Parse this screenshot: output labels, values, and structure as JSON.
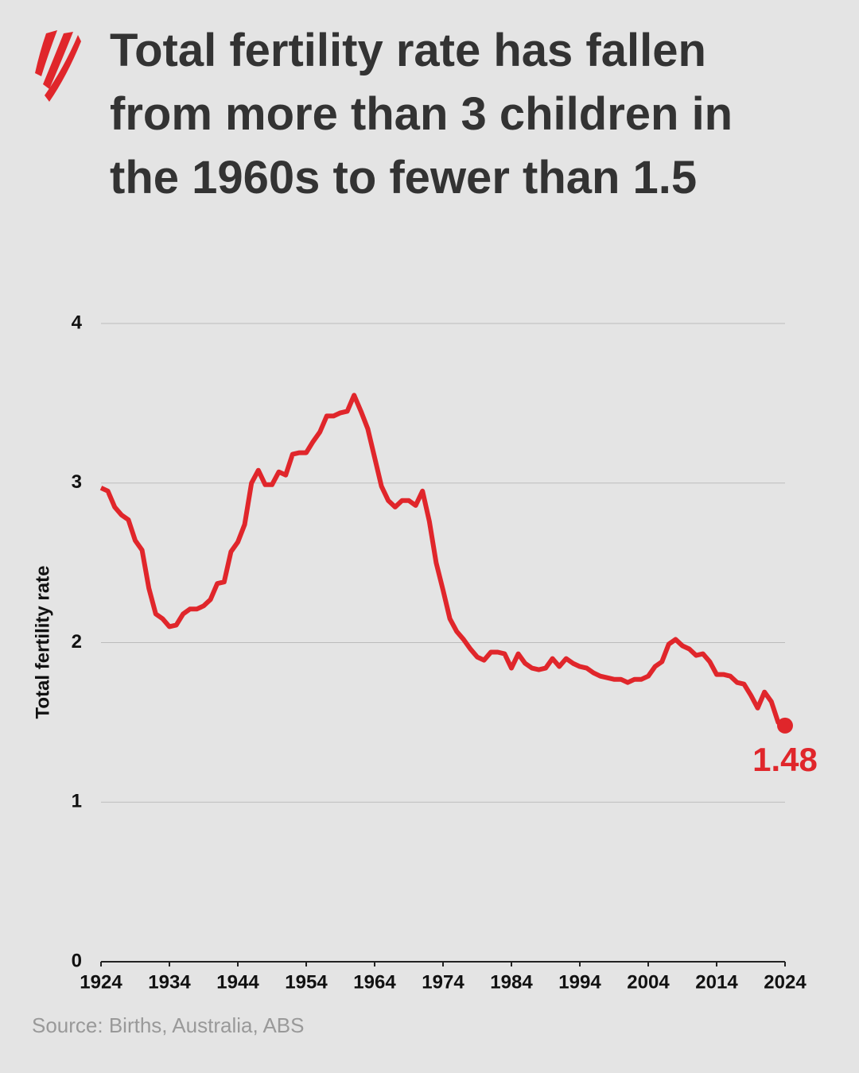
{
  "chart_data": {
    "type": "line",
    "title": "Total fertility rate has fallen from more than 3 children in the 1960s to fewer than 1.5",
    "ylabel": "Total fertility rate",
    "source": "Source: Births, Australia, ABS",
    "color": "#e0262b",
    "x": [
      1924,
      1925,
      1926,
      1927,
      1928,
      1929,
      1930,
      1931,
      1932,
      1933,
      1934,
      1935,
      1936,
      1937,
      1938,
      1939,
      1940,
      1941,
      1942,
      1943,
      1944,
      1945,
      1946,
      1947,
      1948,
      1949,
      1950,
      1951,
      1952,
      1953,
      1954,
      1955,
      1956,
      1957,
      1958,
      1959,
      1960,
      1961,
      1962,
      1963,
      1964,
      1965,
      1966,
      1967,
      1968,
      1969,
      1970,
      1971,
      1972,
      1973,
      1974,
      1975,
      1976,
      1977,
      1978,
      1979,
      1980,
      1981,
      1982,
      1983,
      1984,
      1985,
      1986,
      1987,
      1988,
      1989,
      1990,
      1991,
      1992,
      1993,
      1994,
      1995,
      1996,
      1997,
      1998,
      1999,
      2000,
      2001,
      2002,
      2003,
      2004,
      2005,
      2006,
      2007,
      2008,
      2009,
      2010,
      2011,
      2012,
      2013,
      2014,
      2015,
      2016,
      2017,
      2018,
      2019,
      2020,
      2021,
      2022,
      2023,
      2024
    ],
    "values": [
      2.97,
      2.95,
      2.85,
      2.8,
      2.77,
      2.64,
      2.58,
      2.34,
      2.18,
      2.15,
      2.1,
      2.11,
      2.18,
      2.21,
      2.21,
      2.23,
      2.27,
      2.37,
      2.38,
      2.57,
      2.63,
      2.74,
      3.0,
      3.08,
      2.99,
      2.99,
      3.07,
      3.05,
      3.18,
      3.19,
      3.19,
      3.26,
      3.32,
      3.42,
      3.42,
      3.44,
      3.45,
      3.55,
      3.45,
      3.34,
      3.16,
      2.98,
      2.89,
      2.85,
      2.89,
      2.89,
      2.86,
      2.95,
      2.76,
      2.5,
      2.33,
      2.15,
      2.07,
      2.02,
      1.96,
      1.91,
      1.89,
      1.94,
      1.94,
      1.93,
      1.84,
      1.93,
      1.87,
      1.84,
      1.83,
      1.84,
      1.9,
      1.85,
      1.9,
      1.87,
      1.85,
      1.84,
      1.81,
      1.79,
      1.78,
      1.77,
      1.77,
      1.75,
      1.77,
      1.77,
      1.79,
      1.85,
      1.88,
      1.99,
      2.02,
      1.98,
      1.96,
      1.92,
      1.93,
      1.88,
      1.8,
      1.8,
      1.79,
      1.75,
      1.74,
      1.67,
      1.59,
      1.69,
      1.63,
      1.5,
      1.48
    ],
    "xlim": [
      1924,
      2024
    ],
    "xticks": [
      1924,
      1934,
      1944,
      1954,
      1964,
      1974,
      1984,
      1994,
      2004,
      2014,
      2024
    ],
    "ylim": [
      0,
      4
    ],
    "yticks": [
      0,
      1,
      2,
      3,
      4
    ],
    "grid": true
  }
}
